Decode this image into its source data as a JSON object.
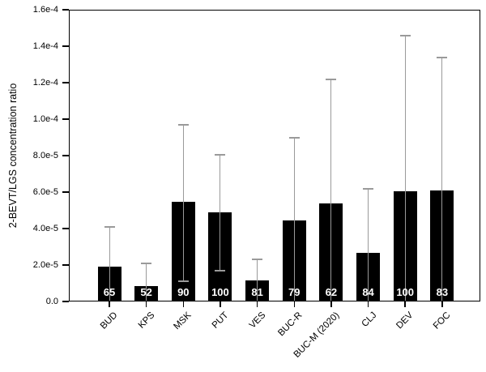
{
  "figure": {
    "background": "#ffffff",
    "bar_color": "#000000",
    "error_bar_color": "#9a9a9a",
    "bar_count_color": "#ffffff",
    "axis_color": "#000000"
  },
  "chart_data": {
    "type": "bar",
    "title": "",
    "xlabel": "",
    "ylabel": "2-BEVT/LGS concentration ratio",
    "ylim": [
      0,
      0.00016
    ],
    "grid": false,
    "legend": null,
    "ytick_values": [
      0,
      2e-05,
      4e-05,
      6e-05,
      8e-05,
      0.0001,
      0.00012,
      0.00014,
      0.00016
    ],
    "ytick_labels": [
      "0.0",
      "2.0e-5",
      "4.0e-5",
      "6.0e-5",
      "8.0e-5",
      "1.0e-4",
      "1.2e-4",
      "1.4e-4",
      "1.6e-4"
    ],
    "categories": [
      "BUD",
      "KPS",
      "MSK",
      "PUT",
      "VES",
      "BUC-R",
      "BUC-M (2020)",
      "CLJ",
      "DEV",
      "FOC"
    ],
    "bars": [
      {
        "label": "BUD",
        "value": 1.9e-05,
        "error_upper": 4.1e-05,
        "error_lower": null,
        "count_label": "65"
      },
      {
        "label": "KPS",
        "value": 8.5e-06,
        "error_upper": 2.1e-05,
        "error_lower": null,
        "count_label": "52"
      },
      {
        "label": "MSK",
        "value": 5.45e-05,
        "error_upper": 9.7e-05,
        "error_lower": 1.1e-05,
        "count_label": "90"
      },
      {
        "label": "PUT",
        "value": 4.9e-05,
        "error_upper": 8.05e-05,
        "error_lower": 1.7e-05,
        "count_label": "100"
      },
      {
        "label": "VES",
        "value": 1.15e-05,
        "error_upper": 2.3e-05,
        "error_lower": null,
        "count_label": "81"
      },
      {
        "label": "BUC-R",
        "value": 4.45e-05,
        "error_upper": 9e-05,
        "error_lower": null,
        "count_label": "79"
      },
      {
        "label": "BUC-M (2020)",
        "value": 5.4e-05,
        "error_upper": 0.000122,
        "error_lower": null,
        "count_label": "62"
      },
      {
        "label": "CLJ",
        "value": 2.65e-05,
        "error_upper": 6.2e-05,
        "error_lower": null,
        "count_label": "84"
      },
      {
        "label": "DEV",
        "value": 6.05e-05,
        "error_upper": 0.000146,
        "error_lower": null,
        "count_label": "100"
      },
      {
        "label": "FOC",
        "value": 6.07e-05,
        "error_upper": 0.000134,
        "error_lower": null,
        "count_label": "83"
      }
    ]
  }
}
